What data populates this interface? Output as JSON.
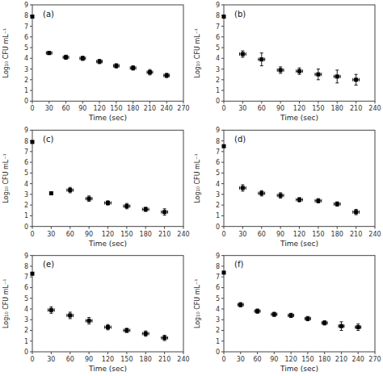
{
  "chart_data": [
    {
      "type": "scatter",
      "title": "(a)",
      "x_label": "Time (sec)",
      "y_label": "Log₁₀ CFU mL⁻¹",
      "grid": false,
      "xlim": [
        0,
        270
      ],
      "ylim": [
        0,
        9
      ],
      "xticks": [
        0,
        30,
        60,
        90,
        120,
        150,
        180,
        210,
        240,
        270
      ],
      "yticks": [
        0,
        1,
        2,
        3,
        4,
        5,
        6,
        7,
        8,
        9
      ],
      "series": [
        {
          "color": "black",
          "marker": "square",
          "x": [
            0,
            30,
            60,
            90,
            120,
            150,
            180,
            210,
            240
          ],
          "values": [
            7.9,
            4.5,
            4.1,
            4.0,
            3.7,
            3.3,
            3.1,
            2.7,
            2.4
          ],
          "y_err": [
            0.0,
            0.15,
            0.2,
            0.2,
            0.2,
            0.2,
            0.2,
            0.25,
            0.2
          ],
          "x_err": [
            0,
            5,
            5,
            5,
            5,
            5,
            5,
            5,
            5
          ]
        }
      ]
    },
    {
      "type": "scatter",
      "title": "(b)",
      "x_label": "Time (sec)",
      "y_label": "Log₁₀ CFU mL⁻¹",
      "grid": false,
      "xlim": [
        0,
        240
      ],
      "ylim": [
        0,
        9
      ],
      "xticks": [
        0,
        30,
        60,
        90,
        120,
        150,
        180,
        210,
        240
      ],
      "yticks": [
        0,
        1,
        2,
        3,
        4,
        5,
        6,
        7,
        8,
        9
      ],
      "series": [
        {
          "color": "black",
          "marker": "square",
          "x": [
            0,
            30,
            60,
            90,
            120,
            150,
            180,
            210
          ],
          "values": [
            7.9,
            4.4,
            3.9,
            2.9,
            2.8,
            2.5,
            2.3,
            2.0
          ],
          "y_err": [
            0.0,
            0.3,
            0.6,
            0.3,
            0.3,
            0.5,
            0.6,
            0.5
          ],
          "x_err": [
            0,
            5,
            5,
            5,
            5,
            5,
            5,
            5
          ]
        }
      ]
    },
    {
      "type": "scatter",
      "title": "(c)",
      "x_label": "Time (sec)",
      "y_label": "Log₁₀ CFU mL⁻¹",
      "grid": false,
      "xlim": [
        0,
        240
      ],
      "ylim": [
        0,
        9
      ],
      "xticks": [
        0,
        30,
        60,
        90,
        120,
        150,
        180,
        210,
        240
      ],
      "yticks": [
        0,
        1,
        2,
        3,
        4,
        5,
        6,
        7,
        8,
        9
      ],
      "series": [
        {
          "color": "black",
          "marker": "square",
          "x": [
            0,
            30,
            60,
            90,
            120,
            150,
            180,
            210
          ],
          "values": [
            7.9,
            3.1,
            3.4,
            2.6,
            2.2,
            1.9,
            1.6,
            1.35
          ],
          "y_err": [
            0.0,
            0.0,
            0.25,
            0.25,
            0.2,
            0.25,
            0.2,
            0.3
          ],
          "x_err": [
            0,
            0,
            5,
            5,
            5,
            5,
            5,
            5
          ]
        }
      ]
    },
    {
      "type": "scatter",
      "title": "(d)",
      "x_label": "Time (sec)",
      "y_label": "Log₁₀ CFU mL⁻¹",
      "grid": false,
      "xlim": [
        0,
        240
      ],
      "ylim": [
        0,
        9
      ],
      "xticks": [
        0,
        30,
        60,
        90,
        120,
        150,
        180,
        210,
        240
      ],
      "yticks": [
        0,
        1,
        2,
        3,
        4,
        5,
        6,
        7,
        8,
        9
      ],
      "series": [
        {
          "color": "black",
          "marker": "square",
          "x": [
            0,
            30,
            60,
            90,
            120,
            150,
            180,
            210
          ],
          "values": [
            7.5,
            3.6,
            3.1,
            2.9,
            2.5,
            2.4,
            2.1,
            1.35
          ],
          "y_err": [
            0.0,
            0.3,
            0.25,
            0.25,
            0.2,
            0.2,
            0.2,
            0.25
          ],
          "x_err": [
            0,
            5,
            5,
            5,
            5,
            5,
            5,
            5
          ]
        }
      ]
    },
    {
      "type": "scatter",
      "title": "(e)",
      "x_label": "Time (sec)",
      "y_label": "Log₁₀ CFU mL⁻¹",
      "grid": false,
      "xlim": [
        0,
        240
      ],
      "ylim": [
        0,
        9
      ],
      "xticks": [
        0,
        30,
        60,
        90,
        120,
        150,
        180,
        210,
        240
      ],
      "yticks": [
        0,
        1,
        2,
        3,
        4,
        5,
        6,
        7,
        8,
        9
      ],
      "series": [
        {
          "color": "black",
          "marker": "square",
          "x": [
            0,
            30,
            60,
            90,
            120,
            150,
            180,
            210
          ],
          "values": [
            7.3,
            3.9,
            3.4,
            2.9,
            2.3,
            2.0,
            1.7,
            1.3
          ],
          "y_err": [
            0.0,
            0.3,
            0.3,
            0.3,
            0.25,
            0.2,
            0.25,
            0.25
          ],
          "x_err": [
            0,
            5,
            5,
            5,
            5,
            5,
            5,
            5
          ]
        }
      ]
    },
    {
      "type": "scatter",
      "title": "(f)",
      "x_label": "Time (sec)",
      "y_label": "Log₁₀ CFU mL⁻¹",
      "grid": false,
      "xlim": [
        0,
        270
      ],
      "ylim": [
        0,
        9
      ],
      "xticks": [
        0,
        30,
        60,
        90,
        120,
        150,
        180,
        210,
        240,
        270
      ],
      "yticks": [
        0,
        1,
        2,
        3,
        4,
        5,
        6,
        7,
        8,
        9
      ],
      "series": [
        {
          "color": "black",
          "marker": "square",
          "x": [
            0,
            30,
            60,
            90,
            120,
            150,
            180,
            210,
            240
          ],
          "values": [
            7.4,
            4.4,
            3.8,
            3.5,
            3.4,
            3.1,
            2.7,
            2.4,
            2.3
          ],
          "y_err": [
            0.0,
            0.2,
            0.2,
            0.2,
            0.2,
            0.2,
            0.2,
            0.4,
            0.3
          ],
          "x_err": [
            0,
            5,
            5,
            5,
            5,
            5,
            5,
            5,
            5
          ]
        }
      ]
    }
  ]
}
